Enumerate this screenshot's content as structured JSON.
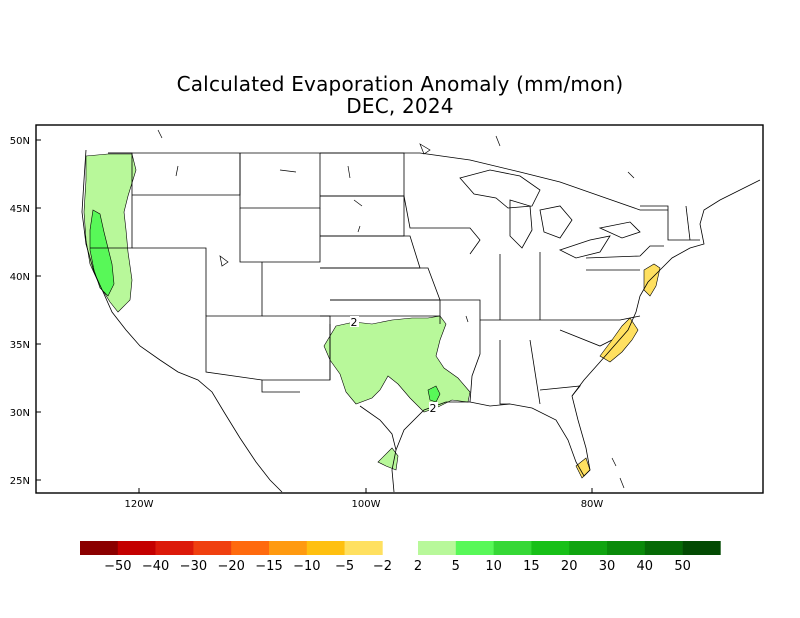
{
  "title_line1": "Calculated Evaporation Anomaly (mm/mon)",
  "title_line2": "DEC, 2024",
  "latitude_labels": [
    "50N",
    "45N",
    "40N",
    "35N",
    "30N",
    "25N"
  ],
  "longitude_labels": [
    "120W",
    "100W",
    "80W"
  ],
  "contour_labels": [
    "2",
    "2"
  ],
  "legend": {
    "negative_colors": [
      "#8b0000",
      "#c40000",
      "#dc1a0a",
      "#f04010",
      "#ff6a0e",
      "#ff9a10",
      "#ffc010",
      "#ffe060"
    ],
    "negative_labels": [
      "−50",
      "−40",
      "−30",
      "−20",
      "−15",
      "−10",
      "−5",
      "−2"
    ],
    "positive_colors": [
      "#b8f89a",
      "#58f858",
      "#36d836",
      "#18c018",
      "#10a410",
      "#0a8a0a",
      "#066a06",
      "#034a03"
    ],
    "positive_labels": [
      "2",
      "5",
      "10",
      "15",
      "20",
      "30",
      "40",
      "50"
    ]
  }
}
